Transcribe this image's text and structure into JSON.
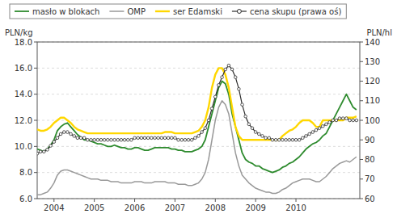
{
  "chart_data": {
    "type": "line",
    "y_label": "PLN/kg",
    "y2_label": "PLN/hl",
    "x": [
      2003.5833333333,
      2003.6666666667,
      2003.75,
      2003.8333333333,
      2003.9166666667,
      2004,
      2004.0833333333,
      2004.1666666667,
      2004.25,
      2004.3333333333,
      2004.4166666667,
      2004.5,
      2004.5833333333,
      2004.6666666667,
      2004.75,
      2004.8333333333,
      2004.9166666667,
      2005,
      2005.0833333333,
      2005.1666666667,
      2005.25,
      2005.3333333333,
      2005.4166666667,
      2005.5,
      2005.5833333333,
      2005.6666666667,
      2005.75,
      2005.8333333333,
      2005.9166666667,
      2006,
      2006.0833333333,
      2006.1666666667,
      2006.25,
      2006.3333333333,
      2006.4166666667,
      2006.5,
      2006.5833333333,
      2006.6666666667,
      2006.75,
      2006.8333333333,
      2006.9166666667,
      2007,
      2007.0833333333,
      2007.1666666667,
      2007.25,
      2007.3333333333,
      2007.4166666667,
      2007.5,
      2007.5833333333,
      2007.6666666667,
      2007.75,
      2007.8333333333,
      2007.9166666667,
      2008,
      2008.0833333333,
      2008.1666666667,
      2008.25,
      2008.3333333333,
      2008.4166666667,
      2008.5,
      2008.5833333333,
      2008.6666666667,
      2008.75,
      2008.8333333333,
      2008.9166666667,
      2009,
      2009.0833333333,
      2009.1666666667,
      2009.25,
      2009.3333333333,
      2009.4166666667,
      2009.5,
      2009.5833333333,
      2009.6666666667,
      2009.75,
      2009.8333333333,
      2009.9166666667,
      2010,
      2010.0833333333,
      2010.1666666667,
      2010.25,
      2010.3333333333,
      2010.4166666667,
      2010.5,
      2010.5833333333,
      2010.6666666667,
      2010.75,
      2010.8333333333,
      2010.9166666667,
      2011,
      2011.0833333333,
      2011.1666666667,
      2011.25,
      2011.3333333333,
      2011.4166666667,
      2011.5
    ],
    "xlim": [
      2003.5833333333,
      2011.5833333333
    ],
    "xticks": [
      2004,
      2005,
      2006,
      2007,
      2008,
      2009,
      2010
    ],
    "ylim": [
      6.0,
      18.0
    ],
    "yticks": [
      {
        "value": 6.0,
        "label": "6.0"
      },
      {
        "value": 8.0,
        "label": "8.0"
      },
      {
        "value": 10.0,
        "label": "10.0"
      },
      {
        "value": 12.0,
        "label": "12.0"
      },
      {
        "value": 14.0,
        "label": "14.0"
      },
      {
        "value": 16.0,
        "label": "16.0"
      },
      {
        "value": 18.0,
        "label": "18.0"
      }
    ],
    "y2lim": [
      60,
      140
    ],
    "y2ticks": [
      60,
      70,
      80,
      90,
      100,
      110,
      120,
      130,
      140
    ],
    "grid": true,
    "legend": "upper left",
    "series": [
      {
        "name": "masło w blokach",
        "color": "#2e8b2e",
        "values": [
          9.8,
          9.7,
          9.6,
          9.8,
          10.1,
          10.5,
          11.2,
          11.5,
          11.7,
          11.8,
          11.5,
          11.2,
          10.9,
          10.7,
          10.5,
          10.5,
          10.4,
          10.3,
          10.2,
          10.2,
          10.1,
          10.0,
          10.0,
          10.1,
          10.0,
          9.9,
          9.9,
          9.8,
          9.8,
          9.9,
          9.9,
          9.8,
          9.7,
          9.7,
          9.8,
          9.9,
          9.9,
          9.9,
          9.9,
          9.9,
          9.8,
          9.8,
          9.7,
          9.7,
          9.6,
          9.6,
          9.6,
          9.7,
          9.8,
          10.0,
          10.5,
          11.5,
          12.5,
          13.5,
          14.5,
          15.0,
          14.8,
          14.0,
          12.5,
          11.5,
          10.5,
          9.5,
          9.0,
          8.8,
          8.7,
          8.5,
          8.5,
          8.3,
          8.2,
          8.1,
          8.0,
          8.1,
          8.2,
          8.4,
          8.5,
          8.7,
          8.8,
          9.0,
          9.2,
          9.5,
          9.8,
          10.0,
          10.2,
          10.3,
          10.5,
          10.8,
          11.0,
          11.5,
          12.0,
          12.5,
          13.0,
          13.5,
          14.0,
          13.5,
          13.0,
          12.8
        ]
      },
      {
        "name": "OMP",
        "color": "#999999",
        "values": [
          6.3,
          6.3,
          6.4,
          6.5,
          6.8,
          7.2,
          7.8,
          8.1,
          8.2,
          8.2,
          8.1,
          8.0,
          7.9,
          7.8,
          7.7,
          7.6,
          7.5,
          7.5,
          7.5,
          7.4,
          7.4,
          7.4,
          7.3,
          7.3,
          7.3,
          7.2,
          7.2,
          7.2,
          7.2,
          7.3,
          7.3,
          7.3,
          7.2,
          7.2,
          7.2,
          7.3,
          7.3,
          7.3,
          7.3,
          7.2,
          7.2,
          7.2,
          7.1,
          7.1,
          7.1,
          7.0,
          7.0,
          7.1,
          7.2,
          7.5,
          8.0,
          9.0,
          10.5,
          12.0,
          13.0,
          13.5,
          13.2,
          12.5,
          11.0,
          9.5,
          8.5,
          7.8,
          7.5,
          7.2,
          7.0,
          6.8,
          6.7,
          6.6,
          6.5,
          6.5,
          6.4,
          6.4,
          6.5,
          6.7,
          6.8,
          7.0,
          7.2,
          7.3,
          7.4,
          7.5,
          7.5,
          7.5,
          7.4,
          7.3,
          7.3,
          7.5,
          7.7,
          8.0,
          8.3,
          8.5,
          8.7,
          8.8,
          8.9,
          8.8,
          9.0,
          9.2
        ]
      },
      {
        "name": "ser Edamski",
        "color": "#ffd700",
        "values": [
          11.3,
          11.2,
          11.2,
          11.3,
          11.5,
          11.8,
          12.0,
          12.2,
          12.2,
          12.0,
          11.8,
          11.5,
          11.3,
          11.2,
          11.1,
          11.0,
          11.0,
          11.0,
          11.0,
          11.0,
          11.0,
          11.0,
          11.0,
          11.0,
          11.0,
          11.0,
          11.0,
          11.0,
          11.0,
          11.0,
          11.0,
          11.0,
          11.0,
          11.0,
          11.0,
          11.0,
          11.0,
          11.0,
          11.1,
          11.1,
          11.1,
          11.0,
          11.0,
          11.0,
          11.0,
          11.0,
          11.0,
          11.1,
          11.2,
          11.5,
          12.0,
          13.0,
          14.5,
          15.5,
          16.0,
          16.0,
          15.5,
          14.5,
          13.0,
          11.5,
          10.8,
          10.5,
          10.5,
          10.5,
          10.5,
          10.5,
          10.5,
          10.5,
          10.5,
          10.5,
          10.5,
          10.5,
          10.5,
          10.8,
          11.0,
          11.2,
          11.3,
          11.5,
          11.8,
          12.0,
          12.0,
          12.0,
          11.8,
          11.5,
          11.5,
          12.0,
          12.0,
          12.0,
          12.0,
          12.0,
          12.0,
          12.0,
          12.2,
          12.2,
          12.2,
          12.3
        ]
      },
      {
        "name": "cena skupu (prawa oś)",
        "color": "#2e2e2e",
        "axis": "y2",
        "marker": "circle",
        "values": [
          83,
          84,
          84,
          85,
          87,
          89,
          91,
          93,
          94,
          94,
          93,
          92,
          91,
          91,
          91,
          90,
          90,
          90,
          90,
          90,
          90,
          90,
          90,
          90,
          90,
          90,
          90,
          90,
          90,
          91,
          91,
          91,
          91,
          91,
          91,
          91,
          91,
          91,
          91,
          91,
          91,
          91,
          90,
          90,
          90,
          90,
          90,
          91,
          92,
          94,
          96,
          100,
          106,
          112,
          118,
          122,
          126,
          128,
          126,
          122,
          116,
          108,
          102,
          98,
          96,
          94,
          93,
          92,
          91,
          91,
          90,
          90,
          90,
          90,
          90,
          90,
          90,
          90,
          90,
          91,
          92,
          93,
          94,
          95,
          96,
          97,
          98,
          99,
          100,
          100,
          101,
          101,
          101,
          100,
          100,
          100
        ]
      }
    ]
  }
}
